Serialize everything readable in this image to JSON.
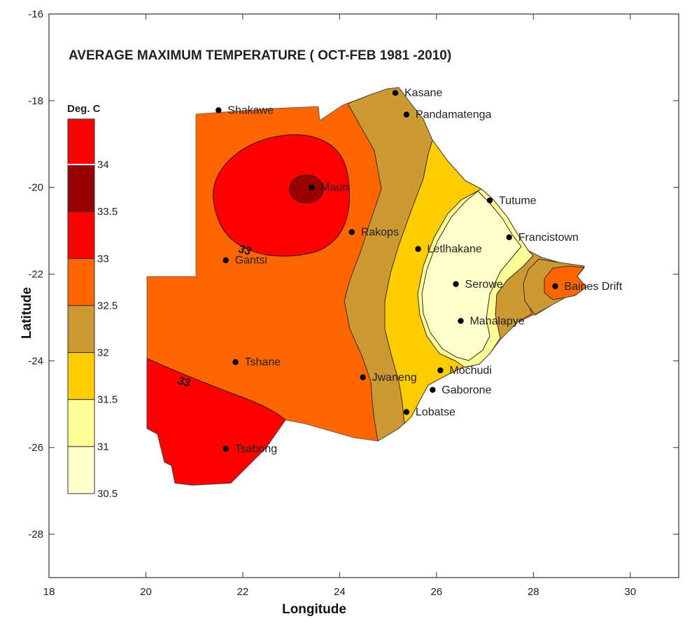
{
  "title": "AVERAGE MAXIMUM TEMPERATURE ( OCT-FEB 1981 -2010)",
  "x_axis": {
    "label": "Longitude",
    "ticks": [
      "18",
      "20",
      "22",
      "24",
      "26",
      "28",
      "30"
    ]
  },
  "y_axis": {
    "label": "Latitude",
    "ticks": [
      "-16",
      "-18",
      "-20",
      "-22",
      "-24",
      "-26",
      "-28"
    ]
  },
  "legend": {
    "title": "Deg. C",
    "labels": [
      "34",
      "33.5",
      "33",
      "32.5",
      "32",
      "31.5",
      "31",
      "30.5"
    ],
    "colors": [
      "#ff0000",
      "#990000",
      "#ff0000",
      "#ff6600",
      "#cc9933",
      "#ffcc00",
      "#ffff99",
      "#ffffcc"
    ]
  },
  "contour_labels": [
    "33",
    "33"
  ],
  "chart_data": {
    "type": "map",
    "title": "AVERAGE MAXIMUM TEMPERATURE ( OCT-FEB 1981 -2010)",
    "xlabel": "Longitude",
    "ylabel": "Latitude",
    "xlim": [
      18,
      31
    ],
    "ylim": [
      -29,
      -16
    ],
    "units": "Deg. C",
    "stations": [
      {
        "name": "Kasane",
        "lon": 25.15,
        "lat": -17.82
      },
      {
        "name": "Pandamatenga",
        "lon": 25.38,
        "lat": -18.32
      },
      {
        "name": "Shakawe",
        "lon": 21.5,
        "lat": -18.22
      },
      {
        "name": "Maun",
        "lon": 23.42,
        "lat": -20.0
      },
      {
        "name": "Tutume",
        "lon": 27.1,
        "lat": -20.3
      },
      {
        "name": "Rakops",
        "lon": 24.25,
        "lat": -21.03
      },
      {
        "name": "Francistown",
        "lon": 27.5,
        "lat": -21.15
      },
      {
        "name": "Letlhakane",
        "lon": 25.62,
        "lat": -21.42
      },
      {
        "name": "Gantsi",
        "lon": 21.65,
        "lat": -21.68
      },
      {
        "name": "Serowe",
        "lon": 26.4,
        "lat": -22.23
      },
      {
        "name": "Baines Drift",
        "lon": 28.45,
        "lat": -22.28
      },
      {
        "name": "Mahalapye",
        "lon": 26.5,
        "lat": -23.08
      },
      {
        "name": "Tshane",
        "lon": 21.85,
        "lat": -24.03
      },
      {
        "name": "Mochudi",
        "lon": 26.08,
        "lat": -24.22
      },
      {
        "name": "Jwaneng",
        "lon": 24.48,
        "lat": -24.38
      },
      {
        "name": "Gaborone",
        "lon": 25.92,
        "lat": -24.67
      },
      {
        "name": "Lobatse",
        "lon": 25.38,
        "lat": -25.18
      },
      {
        "name": "Tsabong",
        "lon": 21.65,
        "lat": -26.03
      }
    ],
    "contour_levels": [
      30.5,
      31,
      31.5,
      32,
      32.5,
      33,
      33.5,
      34
    ]
  }
}
